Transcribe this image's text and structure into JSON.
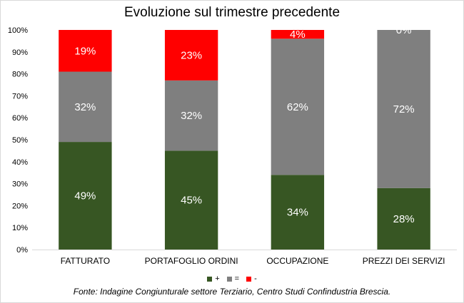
{
  "chart_data": {
    "type": "bar",
    "stacked": true,
    "percent": true,
    "title": "Evoluzione sul trimestre precedente",
    "categories": [
      "FATTURATO",
      "PORTAFOGLIO ORDINI",
      "OCCUPAZIONE",
      "PREZZI DEI SERVIZI"
    ],
    "series": [
      {
        "name": "+",
        "color": "#375623",
        "values": [
          49,
          45,
          34,
          28
        ],
        "labels": [
          "49%",
          "45%",
          "34%",
          "28%"
        ]
      },
      {
        "name": "=",
        "color": "#7f7f7f",
        "values": [
          32,
          32,
          62,
          72
        ],
        "labels": [
          "32%",
          "32%",
          "62%",
          "72%"
        ]
      },
      {
        "name": "-",
        "color": "#ff0000",
        "values": [
          19,
          23,
          4,
          0
        ],
        "labels": [
          "19%",
          "23%",
          "4%",
          "0%"
        ]
      }
    ],
    "y_ticks": [
      "0%",
      "10%",
      "20%",
      "30%",
      "40%",
      "50%",
      "60%",
      "70%",
      "80%",
      "90%",
      "100%"
    ],
    "ylim": [
      0,
      100
    ],
    "grid": false,
    "legend_position": "bottom"
  },
  "source_note": "Fonte: Indagine Congiunturale settore Terziario, Centro Studi Confindustria Brescia."
}
